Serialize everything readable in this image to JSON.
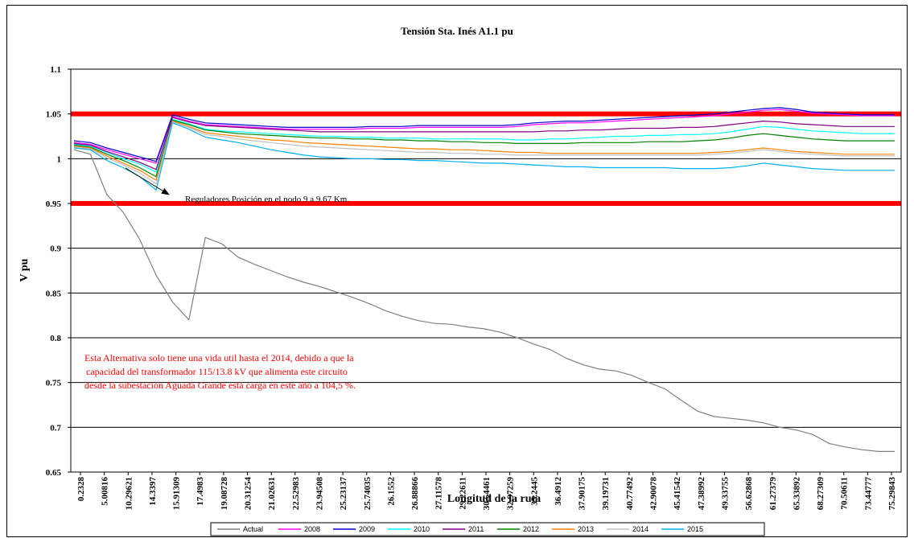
{
  "chart_data": {
    "type": "line",
    "title": "Tensión Sta. Inés A1.1 pu",
    "xlabel": "Longitud de la ruta",
    "ylabel": "V pu",
    "ylim": [
      0.65,
      1.1
    ],
    "y_ticks": [
      "0.65",
      "0.7",
      "0.75",
      "0.8",
      "0.85",
      "0.9",
      "0.95",
      "1",
      "1.05",
      "1.1"
    ],
    "grid": "horizontal",
    "legend_position": "bottom",
    "x_tick_labels": [
      "0.2328",
      "5.00816",
      "10.29621",
      "14.3397",
      "15.91309",
      "17.4983",
      "19.08728",
      "20.31254",
      "21.02631",
      "22.52983",
      "23.94508",
      "25.23137",
      "25.74035",
      "26.1552",
      "26.88866",
      "27.11578",
      "29.22611",
      "30.54461",
      "32.97259",
      "35.2445",
      "36.4912",
      "37.90175",
      "39.19731",
      "40.77492",
      "42.90078",
      "45.41542",
      "47.38992",
      "49.33755",
      "56.62868",
      "61.27379",
      "65.33892",
      "68.27309",
      "70.50611",
      "73.44777",
      "75.29843"
    ],
    "limit_lines": [
      {
        "value": 1.05,
        "color": "#ff0000"
      },
      {
        "value": 0.95,
        "color": "#ff0000"
      }
    ],
    "series": [
      {
        "name": "Actual",
        "color": "#808080",
        "values": [
          1.01,
          1.005,
          0.96,
          0.94,
          0.91,
          0.87,
          0.84,
          0.82,
          0.912,
          0.905,
          0.89,
          0.882,
          0.875,
          0.868,
          0.862,
          0.857,
          0.851,
          0.845,
          0.838,
          0.83,
          0.824,
          0.819,
          0.816,
          0.815,
          0.812,
          0.81,
          0.806,
          0.8,
          0.793,
          0.787,
          0.777,
          0.77,
          0.765,
          0.763,
          0.758,
          0.75,
          0.743,
          0.73,
          0.718,
          0.712,
          0.71,
          0.708,
          0.705,
          0.7,
          0.697,
          0.692,
          0.682,
          0.678,
          0.675,
          0.673,
          0.673
        ]
      },
      {
        "name": "2008",
        "color": "#ff00ff",
        "values": [
          1.018,
          1.016,
          1.01,
          1.005,
          1.0,
          0.995,
          1.047,
          1.042,
          1.038,
          1.037,
          1.036,
          1.035,
          1.034,
          1.033,
          1.033,
          1.033,
          1.033,
          1.033,
          1.034,
          1.034,
          1.034,
          1.035,
          1.035,
          1.035,
          1.035,
          1.035,
          1.035,
          1.036,
          1.038,
          1.039,
          1.04,
          1.04,
          1.041,
          1.042,
          1.043,
          1.044,
          1.045,
          1.046,
          1.047,
          1.048,
          1.05,
          1.052,
          1.054,
          1.055,
          1.053,
          1.051,
          1.05,
          1.049,
          1.048,
          1.048,
          1.048
        ]
      },
      {
        "name": "2009",
        "color": "#0000cc",
        "values": [
          1.02,
          1.018,
          1.012,
          1.007,
          1.002,
          0.997,
          1.049,
          1.044,
          1.04,
          1.039,
          1.038,
          1.037,
          1.036,
          1.035,
          1.035,
          1.035,
          1.035,
          1.035,
          1.036,
          1.036,
          1.036,
          1.037,
          1.037,
          1.037,
          1.037,
          1.037,
          1.037,
          1.038,
          1.04,
          1.041,
          1.042,
          1.042,
          1.043,
          1.044,
          1.045,
          1.046,
          1.047,
          1.048,
          1.049,
          1.05,
          1.052,
          1.054,
          1.056,
          1.057,
          1.055,
          1.052,
          1.051,
          1.05,
          1.049,
          1.049,
          1.049
        ]
      },
      {
        "name": "2010",
        "color": "#00ffff",
        "values": [
          1.016,
          1.014,
          1.007,
          1.0,
          0.994,
          0.985,
          1.044,
          1.039,
          1.033,
          1.031,
          1.03,
          1.029,
          1.028,
          1.027,
          1.026,
          1.025,
          1.025,
          1.024,
          1.024,
          1.023,
          1.023,
          1.023,
          1.022,
          1.022,
          1.022,
          1.022,
          1.022,
          1.021,
          1.021,
          1.022,
          1.022,
          1.023,
          1.024,
          1.025,
          1.025,
          1.026,
          1.026,
          1.027,
          1.027,
          1.028,
          1.03,
          1.033,
          1.036,
          1.035,
          1.033,
          1.031,
          1.03,
          1.029,
          1.028,
          1.028,
          1.028
        ]
      },
      {
        "name": "2011",
        "color": "#800080",
        "values": [
          1.017,
          1.015,
          1.008,
          1.002,
          0.996,
          0.988,
          1.046,
          1.041,
          1.037,
          1.036,
          1.035,
          1.034,
          1.033,
          1.032,
          1.031,
          1.03,
          1.03,
          1.03,
          1.03,
          1.03,
          1.03,
          1.03,
          1.03,
          1.03,
          1.03,
          1.03,
          1.03,
          1.03,
          1.03,
          1.031,
          1.031,
          1.032,
          1.032,
          1.033,
          1.034,
          1.034,
          1.034,
          1.035,
          1.035,
          1.036,
          1.038,
          1.04,
          1.042,
          1.041,
          1.039,
          1.038,
          1.037,
          1.036,
          1.036,
          1.036,
          1.036
        ]
      },
      {
        "name": "2012",
        "color": "#008000",
        "values": [
          1.015,
          1.013,
          1.005,
          0.998,
          0.99,
          0.98,
          1.043,
          1.038,
          1.032,
          1.03,
          1.028,
          1.027,
          1.026,
          1.025,
          1.024,
          1.023,
          1.023,
          1.022,
          1.022,
          1.021,
          1.021,
          1.02,
          1.02,
          1.019,
          1.019,
          1.018,
          1.018,
          1.017,
          1.017,
          1.017,
          1.017,
          1.018,
          1.018,
          1.018,
          1.018,
          1.019,
          1.019,
          1.019,
          1.02,
          1.021,
          1.023,
          1.026,
          1.028,
          1.026,
          1.024,
          1.022,
          1.021,
          1.02,
          1.02,
          1.02,
          1.02
        ]
      },
      {
        "name": "2013",
        "color": "#ff8000",
        "values": [
          1.014,
          1.012,
          1.003,
          0.995,
          0.987,
          0.976,
          1.042,
          1.036,
          1.029,
          1.027,
          1.025,
          1.023,
          1.021,
          1.02,
          1.018,
          1.017,
          1.016,
          1.015,
          1.014,
          1.013,
          1.012,
          1.011,
          1.011,
          1.01,
          1.01,
          1.009,
          1.008,
          1.007,
          1.007,
          1.006,
          1.006,
          1.006,
          1.006,
          1.006,
          1.006,
          1.006,
          1.006,
          1.006,
          1.006,
          1.007,
          1.008,
          1.01,
          1.012,
          1.01,
          1.008,
          1.007,
          1.006,
          1.005,
          1.005,
          1.005,
          1.005
        ]
      },
      {
        "name": "2014",
        "color": "#c0c0c0",
        "values": [
          1.013,
          1.011,
          1.001,
          0.993,
          0.984,
          0.972,
          1.041,
          1.035,
          1.027,
          1.025,
          1.022,
          1.02,
          1.018,
          1.016,
          1.014,
          1.013,
          1.012,
          1.011,
          1.01,
          1.009,
          1.008,
          1.007,
          1.007,
          1.006,
          1.006,
          1.005,
          1.005,
          1.004,
          1.004,
          1.004,
          1.004,
          1.004,
          1.004,
          1.004,
          1.004,
          1.004,
          1.004,
          1.004,
          1.004,
          1.005,
          1.006,
          1.008,
          1.01,
          1.008,
          1.006,
          1.005,
          1.004,
          1.003,
          1.003,
          1.003,
          1.003
        ]
      },
      {
        "name": "2015",
        "color": "#00b0f0",
        "values": [
          1.012,
          1.01,
          0.998,
          0.99,
          0.98,
          0.965,
          1.04,
          1.033,
          1.024,
          1.021,
          1.018,
          1.014,
          1.01,
          1.007,
          1.004,
          1.002,
          1.001,
          1.0,
          1.0,
          0.999,
          0.999,
          0.998,
          0.998,
          0.997,
          0.996,
          0.995,
          0.995,
          0.994,
          0.993,
          0.992,
          0.991,
          0.991,
          0.99,
          0.99,
          0.99,
          0.99,
          0.99,
          0.989,
          0.989,
          0.989,
          0.99,
          0.992,
          0.995,
          0.993,
          0.991,
          0.989,
          0.988,
          0.987,
          0.987,
          0.987,
          0.987
        ]
      }
    ],
    "annotations": [
      {
        "id": "arrow",
        "text": "Reguladores Posición en el nodo 9 a 9.67 Km."
      },
      {
        "id": "red_line_1",
        "text": "Esta Alternativa solo tiene una vida util hasta el 2014, debido a que la"
      },
      {
        "id": "red_line_2",
        "text": "capacidad del transformador  115/13.8 kV que alimenta este circuito"
      },
      {
        "id": "red_line_3",
        "text": "desde la subestación Aguada Grande está carga en este año a 104,5 %."
      }
    ]
  }
}
